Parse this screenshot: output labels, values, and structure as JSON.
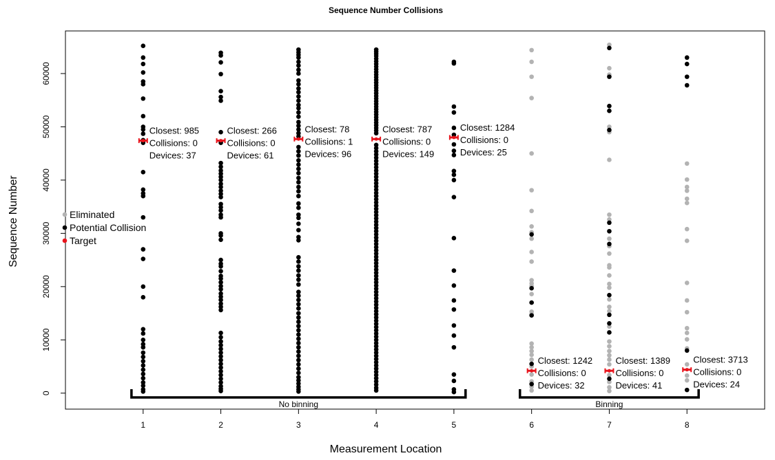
{
  "chart_data": {
    "type": "scatter",
    "title": "Sequence Number Collisions",
    "xlabel": "Measurement Location",
    "ylabel": "Sequence Number",
    "xlim": [
      0,
      9
    ],
    "ylim": [
      -3000,
      68000
    ],
    "x_ticks": [
      "1",
      "2",
      "3",
      "4",
      "5",
      "6",
      "7",
      "8"
    ],
    "y_ticks": [
      "0",
      "10000",
      "20000",
      "30000",
      "40000",
      "50000",
      "60000"
    ],
    "y_tick_values": [
      0,
      10000,
      20000,
      30000,
      40000,
      50000,
      60000
    ],
    "grid": false,
    "legend_position": "left",
    "legend": [
      {
        "label": "Eliminated",
        "color": "#b3b3b3"
      },
      {
        "label": "Potential Collision",
        "color": "#000000"
      },
      {
        "label": "Target",
        "color": "#e8141c"
      }
    ],
    "colors": {
      "eliminated": "#b3b3b3",
      "potential": "#000000",
      "target": "#e8141c"
    },
    "groups": [
      {
        "label": "No binning",
        "x_range": [
          0.85,
          5.15
        ]
      },
      {
        "label": "Binning",
        "x_range": [
          5.85,
          8.15
        ]
      }
    ],
    "locations": [
      {
        "x": 1,
        "target": 47400,
        "lines": [
          "Closest: 985",
          "Collisions:  0",
          "Devices:  37"
        ],
        "potential": [
          65200,
          63000,
          61800,
          60200,
          58500,
          58000,
          55300,
          52000,
          50000,
          49500,
          48700,
          47500,
          47000,
          41500,
          38200,
          37500,
          37000,
          33000,
          27000,
          25200,
          20000,
          18000,
          12000,
          11200,
          10000,
          9200,
          8600,
          7600,
          6800,
          6000,
          5200,
          4400,
          3600,
          2800,
          2000,
          1400,
          700,
          300
        ],
        "eliminated": []
      },
      {
        "x": 2,
        "target": 47400,
        "lines": [
          "Closest: 266",
          "Collisions:  0",
          "Devices:  61"
        ],
        "potential": [
          63900,
          63400,
          62100,
          59900,
          56700,
          55600,
          54900,
          49000,
          47000,
          43200,
          42500,
          41800,
          41200,
          40600,
          40000,
          39300,
          38700,
          38000,
          37400,
          36800,
          35500,
          34900,
          34300,
          33500,
          33000,
          30000,
          29600,
          28800,
          25000,
          24300,
          23800,
          22900,
          22000,
          21500,
          20800,
          20100,
          19500,
          18700,
          18100,
          17500,
          16800,
          16200,
          15600,
          11300,
          10500,
          9700,
          9000,
          8300,
          7600,
          6900,
          6200,
          5500,
          4800,
          4100,
          3400,
          2700,
          2000,
          1300,
          800,
          400
        ],
        "eliminated": []
      },
      {
        "x": 3,
        "target": 47700,
        "lines": [
          "Closest: 78",
          "Collisions:  1",
          "Devices:  96"
        ],
        "potential": [
          64500,
          64000,
          63500,
          63000,
          62200,
          61500,
          60700,
          60000,
          58700,
          58000,
          57200,
          56500,
          55700,
          54900,
          54100,
          53500,
          52700,
          51900,
          50900,
          50200,
          49500,
          48800,
          48200,
          46200,
          45400,
          44600,
          43700,
          42900,
          42100,
          41300,
          40400,
          39600,
          38700,
          37900,
          37000,
          35600,
          34800,
          33500,
          32900,
          31800,
          30600,
          29300,
          28700,
          25500,
          24700,
          23800,
          23000,
          22100,
          21300,
          20400,
          19000,
          18300,
          17500,
          16700,
          15900,
          15000,
          14200,
          13400,
          12600,
          11800,
          11000,
          10200,
          9400,
          8600,
          7800,
          7000,
          6200,
          5400,
          4600,
          3800,
          3000,
          2400,
          1800,
          1200,
          700,
          300
        ],
        "eliminated": []
      },
      {
        "x": 4,
        "target": 47700,
        "lines": [
          "Closest: 787",
          "Collisions:  0",
          "Devices:  149"
        ],
        "potential": [
          64500,
          64100,
          63700,
          63300,
          62800,
          62300,
          61800,
          61300,
          60800,
          60300,
          59800,
          59300,
          58800,
          58300,
          57800,
          57300,
          56800,
          56300,
          55800,
          55300,
          54800,
          54300,
          53800,
          53300,
          52800,
          52300,
          51800,
          51300,
          50800,
          50300,
          49800,
          49300,
          48800,
          46600,
          46000,
          45400,
          44800,
          44200,
          43600,
          43000,
          42400,
          41800,
          41200,
          40600,
          40000,
          39400,
          38800,
          38200,
          37600,
          37000,
          36400,
          35800,
          35200,
          34600,
          34000,
          33400,
          32800,
          32200,
          31600,
          31000,
          30400,
          29800,
          29200,
          28600,
          28000,
          27400,
          26800,
          26200,
          25600,
          25000,
          24400,
          23800,
          23200,
          22600,
          22000,
          21400,
          20800,
          20200,
          19600,
          19000,
          18400,
          17800,
          17200,
          16600,
          16000,
          15400,
          14800,
          14200,
          13600,
          13000,
          12400,
          11800,
          11200,
          10600,
          10000,
          9400,
          8800,
          8200,
          7600,
          7000,
          6400,
          5800,
          5200,
          4600,
          4000,
          3400,
          2800,
          2200,
          1600,
          1000,
          500
        ],
        "eliminated": []
      },
      {
        "x": 5,
        "target": 48000,
        "lines": [
          "Closest: 1284",
          "Collisions:  0",
          "Devices:  25"
        ],
        "potential": [
          62200,
          61900,
          53800,
          52700,
          49800,
          48500,
          46700,
          45500,
          44700,
          41700,
          41000,
          40000,
          36800,
          29100,
          23000,
          20200,
          17400,
          15700,
          12700,
          10800,
          8600,
          3500,
          2300,
          700,
          200
        ],
        "eliminated": []
      },
      {
        "x": 6,
        "target": 4200,
        "lines": [
          "Closest: 1242",
          "Collisions:  0",
          "Devices:  32"
        ],
        "potential": [
          29800,
          19700,
          17000,
          14600,
          5500,
          1700
        ],
        "eliminated": [
          64400,
          62200,
          59400,
          55400,
          45000,
          38100,
          34200,
          31300,
          30200,
          29000,
          26500,
          24700,
          21200,
          20600,
          20100,
          18600,
          15300,
          14800,
          9300,
          8600,
          7900,
          7200,
          6300,
          5000,
          3500,
          2200,
          1200,
          500
        ]
      },
      {
        "x": 7,
        "target": 4200,
        "lines": [
          "Closest: 1389",
          "Collisions:  0",
          "Devices:  41"
        ],
        "potential": [
          64800,
          59400,
          53900,
          53000,
          49400,
          32000,
          30400,
          28000,
          18400,
          14700,
          13100,
          11400,
          2700
        ],
        "eliminated": [
          65400,
          61000,
          59800,
          50000,
          49000,
          43800,
          33500,
          32600,
          29000,
          27600,
          26200,
          24000,
          23600,
          22100,
          20500,
          19800,
          17600,
          16200,
          15400,
          12500,
          9700,
          8800,
          7900,
          7100,
          6300,
          5400,
          3400,
          2100,
          1100,
          400
        ]
      },
      {
        "x": 8,
        "target": 4400,
        "lines": [
          "Closest: 3713",
          "Collisions:  0",
          "Devices:  24"
        ],
        "potential": [
          63000,
          61800,
          59400,
          57800,
          8000,
          600
        ],
        "eliminated": [
          43100,
          40100,
          38700,
          38000,
          36500,
          35700,
          30800,
          28600,
          20700,
          17400,
          15200,
          12200,
          11300,
          10100,
          8400,
          5400,
          3300,
          2400
        ]
      }
    ]
  }
}
